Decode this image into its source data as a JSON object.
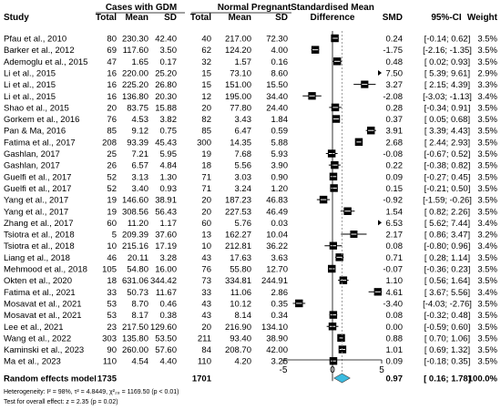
{
  "headers": {
    "study": "Study",
    "group1": "Cases with GDM",
    "group2": "Normal Pregnant",
    "total1": "Total",
    "mean1": "Mean",
    "sd1": "SD",
    "total2": "Total",
    "mean2": "Mean",
    "sd2": "SD",
    "smd_title_1": "Standardised Mean",
    "smd_title_2": "Difference",
    "smd": "SMD",
    "ci": "95%-CI",
    "weight": "Weight"
  },
  "chart_data": {
    "type": "forest",
    "xlim": [
      -5,
      5
    ],
    "ticks": [
      -5,
      0,
      5
    ],
    "grid": false,
    "studies": [
      {
        "study": "Pfau et al., 2010",
        "n1": "80",
        "mean1": "230.30",
        "sd1": "42.40",
        "n2": "40",
        "mean2": "217.00",
        "sd2": "72.30",
        "smd": 0.24,
        "lo": -0.14,
        "hi": 0.62,
        "smd_text": "0.24",
        "ci_text": "[-0.14; 0.62]",
        "weight": "3.5%",
        "w": 3.5
      },
      {
        "study": "Barker et al., 2012",
        "n1": "69",
        "mean1": "117.60",
        "sd1": "3.50",
        "n2": "62",
        "mean2": "124.20",
        "sd2": "4.00",
        "smd": -1.75,
        "lo": -2.16,
        "hi": -1.35,
        "smd_text": "-1.75",
        "ci_text": "[-2.16; -1.35]",
        "weight": "3.5%",
        "w": 3.5
      },
      {
        "study": "Ademoglu et al., 2015",
        "n1": "47",
        "mean1": "1.65",
        "sd1": "0.17",
        "n2": "32",
        "mean2": "1.57",
        "sd2": "0.16",
        "smd": 0.48,
        "lo": 0.02,
        "hi": 0.93,
        "smd_text": "0.48",
        "ci_text": "[ 0.02; 0.93]",
        "weight": "3.5%",
        "w": 3.5
      },
      {
        "study": "Li et al., 2015",
        "n1": "16",
        "mean1": "220.00",
        "sd1": "25.20",
        "n2": "15",
        "mean2": "73.10",
        "sd2": "8.60",
        "smd": 7.5,
        "lo": 5.39,
        "hi": 9.61,
        "smd_text": "7.50",
        "ci_text": "[ 5.39; 9.61]",
        "weight": "2.9%",
        "w": 2.9
      },
      {
        "study": "Li et al., 2015",
        "n1": "16",
        "mean1": "225.20",
        "sd1": "26.80",
        "n2": "15",
        "mean2": "151.00",
        "sd2": "15.50",
        "smd": 3.27,
        "lo": 2.15,
        "hi": 4.39,
        "smd_text": "3.27",
        "ci_text": "[ 2.15; 4.39]",
        "weight": "3.3%",
        "w": 3.3
      },
      {
        "study": "Li et al., 2015",
        "n1": "16",
        "mean1": "136.80",
        "sd1": "20.30",
        "n2": "12",
        "mean2": "195.00",
        "sd2": "34.40",
        "smd": -2.08,
        "lo": -3.03,
        "hi": -1.13,
        "smd_text": "-2.08",
        "ci_text": "[-3.03; -1.13]",
        "weight": "3.4%",
        "w": 3.4
      },
      {
        "study": "Shao et al., 2015",
        "n1": "20",
        "mean1": "83.75",
        "sd1": "15.88",
        "n2": "20",
        "mean2": "77.80",
        "sd2": "24.40",
        "smd": 0.28,
        "lo": -0.34,
        "hi": 0.91,
        "smd_text": "0.28",
        "ci_text": "[-0.34; 0.91]",
        "weight": "3.5%",
        "w": 3.5
      },
      {
        "study": "Gorkem et al., 2016",
        "n1": "76",
        "mean1": "4.53",
        "sd1": "3.82",
        "n2": "82",
        "mean2": "3.43",
        "sd2": "1.84",
        "smd": 0.37,
        "lo": 0.05,
        "hi": 0.68,
        "smd_text": "0.37",
        "ci_text": "[ 0.05; 0.68]",
        "weight": "3.5%",
        "w": 3.5
      },
      {
        "study": "Pan & Ma, 2016",
        "n1": "85",
        "mean1": "9.12",
        "sd1": "0.75",
        "n2": "85",
        "mean2": "6.47",
        "sd2": "0.59",
        "smd": 3.91,
        "lo": 3.39,
        "hi": 4.43,
        "smd_text": "3.91",
        "ci_text": "[ 3.39; 4.43]",
        "weight": "3.5%",
        "w": 3.5
      },
      {
        "study": "Fatima et al., 2017",
        "n1": "208",
        "mean1": "93.39",
        "sd1": "45.43",
        "n2": "300",
        "mean2": "14.35",
        "sd2": "5.88",
        "smd": 2.68,
        "lo": 2.44,
        "hi": 2.93,
        "smd_text": "2.68",
        "ci_text": "[ 2.44; 2.93]",
        "weight": "3.5%",
        "w": 3.5
      },
      {
        "study": "Gashlan, 2017",
        "n1": "25",
        "mean1": "7.21",
        "sd1": "5.95",
        "n2": "19",
        "mean2": "7.68",
        "sd2": "5.93",
        "smd": -0.08,
        "lo": -0.67,
        "hi": 0.52,
        "smd_text": "-0.08",
        "ci_text": "[-0.67; 0.52]",
        "weight": "3.5%",
        "w": 3.5
      },
      {
        "study": "Gashlan, 2017",
        "n1": "26",
        "mean1": "6.57",
        "sd1": "4.84",
        "n2": "18",
        "mean2": "5.56",
        "sd2": "3.90",
        "smd": 0.22,
        "lo": -0.38,
        "hi": 0.82,
        "smd_text": "0.22",
        "ci_text": "[-0.38; 0.82]",
        "weight": "3.5%",
        "w": 3.5
      },
      {
        "study": "Guelfi et al., 2017",
        "n1": "52",
        "mean1": "3.13",
        "sd1": "1.30",
        "n2": "71",
        "mean2": "3.03",
        "sd2": "0.90",
        "smd": 0.09,
        "lo": -0.27,
        "hi": 0.45,
        "smd_text": "0.09",
        "ci_text": "[-0.27; 0.45]",
        "weight": "3.5%",
        "w": 3.5
      },
      {
        "study": "Guelfi et al., 2017",
        "n1": "52",
        "mean1": "3.40",
        "sd1": "0.93",
        "n2": "71",
        "mean2": "3.24",
        "sd2": "1.20",
        "smd": 0.15,
        "lo": -0.21,
        "hi": 0.5,
        "smd_text": "0.15",
        "ci_text": "[-0.21; 0.50]",
        "weight": "3.5%",
        "w": 3.5
      },
      {
        "study": "Yang et al., 2017",
        "n1": "19",
        "mean1": "146.60",
        "sd1": "38.91",
        "n2": "20",
        "mean2": "187.23",
        "sd2": "46.83",
        "smd": -0.92,
        "lo": -1.59,
        "hi": -0.26,
        "smd_text": "-0.92",
        "ci_text": "[-1.59; -0.26]",
        "weight": "3.5%",
        "w": 3.5
      },
      {
        "study": "Yang et al., 2017",
        "n1": "19",
        "mean1": "308.56",
        "sd1": "56.43",
        "n2": "20",
        "mean2": "227.53",
        "sd2": "46.49",
        "smd": 1.54,
        "lo": 0.82,
        "hi": 2.26,
        "smd_text": "1.54",
        "ci_text": "[ 0.82; 2.26]",
        "weight": "3.5%",
        "w": 3.5
      },
      {
        "study": "Zhang et al., 2017",
        "n1": "60",
        "mean1": "11.20",
        "sd1": "1.17",
        "n2": "60",
        "mean2": "5.76",
        "sd2": "0.03",
        "smd": 6.53,
        "lo": 5.62,
        "hi": 7.44,
        "smd_text": "6.53",
        "ci_text": "[ 5.62; 7.44]",
        "weight": "3.4%",
        "w": 3.4
      },
      {
        "study": "Tsiotra et al., 2018",
        "n1": "5",
        "mean1": "209.39",
        "sd1": "37.60",
        "n2": "13",
        "mean2": "162.27",
        "sd2": "10.04",
        "smd": 2.17,
        "lo": 0.86,
        "hi": 3.47,
        "smd_text": "2.17",
        "ci_text": "[ 0.86; 3.47]",
        "weight": "3.2%",
        "w": 3.2
      },
      {
        "study": "Tsiotra et al., 2018",
        "n1": "10",
        "mean1": "215.16",
        "sd1": "17.19",
        "n2": "10",
        "mean2": "212.81",
        "sd2": "36.22",
        "smd": 0.08,
        "lo": -0.8,
        "hi": 0.96,
        "smd_text": "0.08",
        "ci_text": "[-0.80; 0.96]",
        "weight": "3.4%",
        "w": 3.4
      },
      {
        "study": "Liang et al., 2018",
        "n1": "46",
        "mean1": "20.11",
        "sd1": "3.28",
        "n2": "43",
        "mean2": "17.63",
        "sd2": "3.63",
        "smd": 0.71,
        "lo": 0.28,
        "hi": 1.14,
        "smd_text": "0.71",
        "ci_text": "[ 0.28; 1.14]",
        "weight": "3.5%",
        "w": 3.5
      },
      {
        "study": "Mehmood et al., 2018",
        "n1": "105",
        "mean1": "54.80",
        "sd1": "16.00",
        "n2": "76",
        "mean2": "55.80",
        "sd2": "12.70",
        "smd": -0.07,
        "lo": -0.36,
        "hi": 0.23,
        "smd_text": "-0.07",
        "ci_text": "[-0.36; 0.23]",
        "weight": "3.5%",
        "w": 3.5
      },
      {
        "study": "Okten et al., 2020",
        "n1": "18",
        "mean1": "631.06",
        "sd1": "344.42",
        "n2": "73",
        "mean2": "334.81",
        "sd2": "244.91",
        "smd": 1.1,
        "lo": 0.56,
        "hi": 1.64,
        "smd_text": "1.10",
        "ci_text": "[ 0.56; 1.64]",
        "weight": "3.5%",
        "w": 3.5
      },
      {
        "study": "Fatima et al., 2021",
        "n1": "33",
        "mean1": "50.73",
        "sd1": "11.67",
        "n2": "33",
        "mean2": "11.06",
        "sd2": "2.86",
        "smd": 4.61,
        "lo": 3.67,
        "hi": 5.56,
        "smd_text": "4.61",
        "ci_text": "[ 3.67; 5.56]",
        "weight": "3.4%",
        "w": 3.4
      },
      {
        "study": "Mosavat et al., 2021",
        "n1": "53",
        "mean1": "8.70",
        "sd1": "0.46",
        "n2": "43",
        "mean2": "10.12",
        "sd2": "0.35",
        "smd": -3.4,
        "lo": -4.03,
        "hi": -2.76,
        "smd_text": "-3.40",
        "ci_text": "[-4.03; -2.76]",
        "weight": "3.5%",
        "w": 3.5
      },
      {
        "study": "Mosavat et al., 2021",
        "n1": "53",
        "mean1": "8.17",
        "sd1": "0.38",
        "n2": "43",
        "mean2": "8.14",
        "sd2": "0.34",
        "smd": 0.08,
        "lo": -0.32,
        "hi": 0.48,
        "smd_text": "0.08",
        "ci_text": "[-0.32; 0.48]",
        "weight": "3.5%",
        "w": 3.5
      },
      {
        "study": "Lee et al., 2021",
        "n1": "23",
        "mean1": "217.50",
        "sd1": "129.60",
        "n2": "20",
        "mean2": "216.90",
        "sd2": "134.10",
        "smd": 0.0,
        "lo": -0.59,
        "hi": 0.6,
        "smd_text": "0.00",
        "ci_text": "[-0.59; 0.60]",
        "weight": "3.5%",
        "w": 3.5
      },
      {
        "study": "Wang et al., 2022",
        "n1": "303",
        "mean1": "135.80",
        "sd1": "53.50",
        "n2": "211",
        "mean2": "93.40",
        "sd2": "38.90",
        "smd": 0.88,
        "lo": 0.7,
        "hi": 1.06,
        "smd_text": "0.88",
        "ci_text": "[ 0.70; 1.06]",
        "weight": "3.5%",
        "w": 3.5
      },
      {
        "study": "Kaminski et al., 2023",
        "n1": "90",
        "mean1": "260.00",
        "sd1": "57.60",
        "n2": "84",
        "mean2": "208.70",
        "sd2": "42.00",
        "smd": 1.01,
        "lo": 0.69,
        "hi": 1.32,
        "smd_text": "1.01",
        "ci_text": "[ 0.69; 1.32]",
        "weight": "3.5%",
        "w": 3.5
      },
      {
        "study": "Ma et al., 2023",
        "n1": "110",
        "mean1": "4.54",
        "sd1": "4.40",
        "n2": "110",
        "mean2": "4.20",
        "sd2": "3.25",
        "smd": 0.09,
        "lo": -0.18,
        "hi": 0.35,
        "smd_text": "0.09",
        "ci_text": "[-0.18; 0.35]",
        "weight": "3.5%",
        "w": 3.5
      }
    ],
    "summary": {
      "label": "Random effects model",
      "n1": "1735",
      "n2": "1701",
      "smd": 0.97,
      "lo": 0.16,
      "hi": 1.78,
      "smd_text": "0.97",
      "ci_text": "[ 0.16; 1.78]",
      "weight": "100.0%",
      "color": "#3bbbe0"
    },
    "heterogeneity": "Heterogeneity: I² = 98%, τ² = 4.8449, χ²₂₈ = 1169.50 (p < 0.01)",
    "overall_test": "Test for overall effect: z = 2.35 (p = 0.02)"
  }
}
